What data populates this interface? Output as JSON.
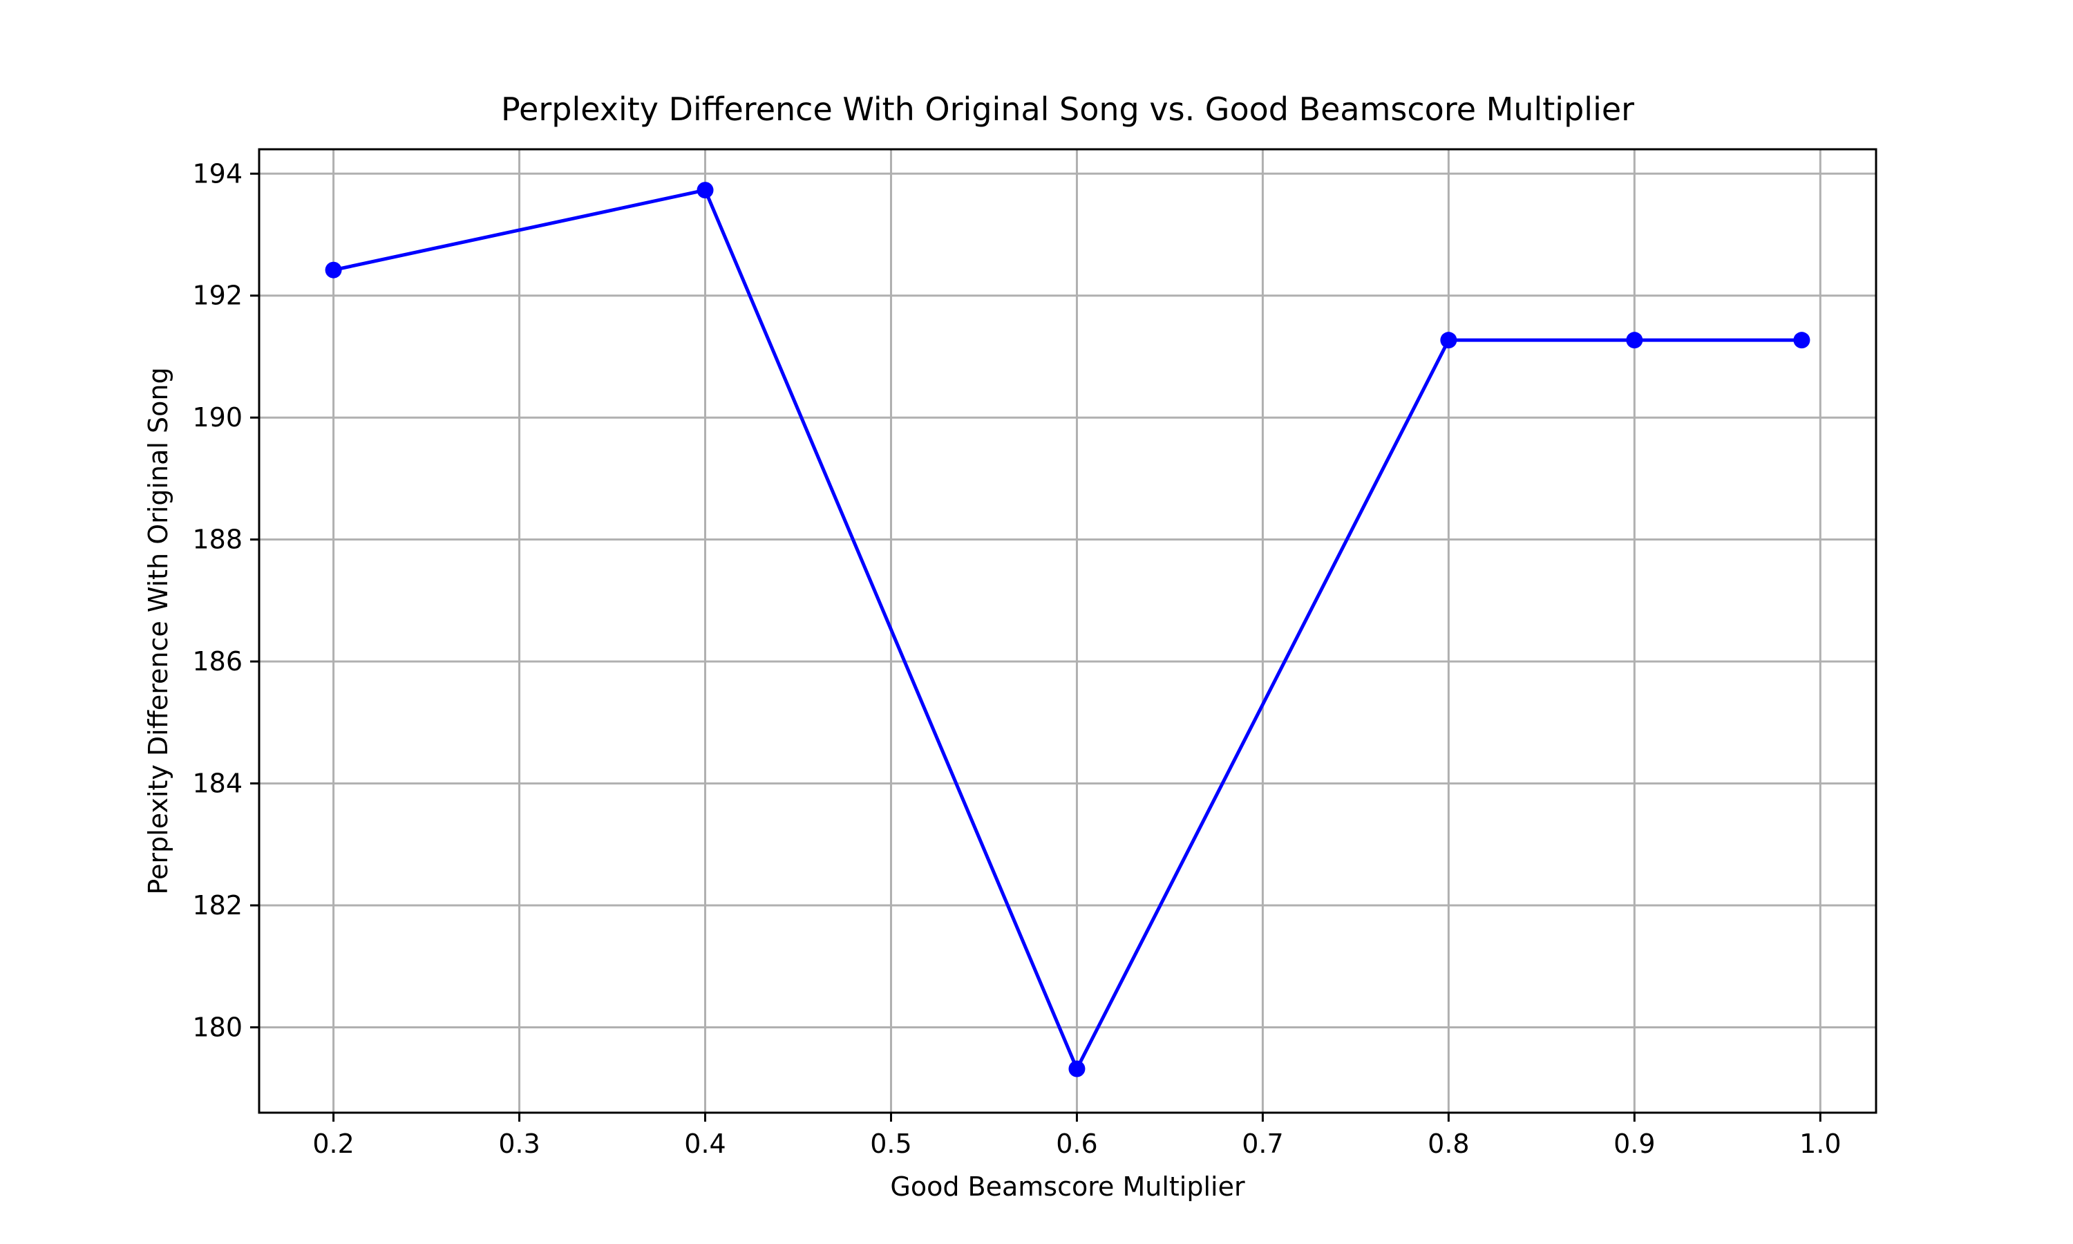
{
  "chart_data": {
    "type": "line",
    "title": "Perplexity Difference With Original Song vs. Good Beamscore Multiplier",
    "xlabel": "Good Beamscore Multiplier",
    "ylabel": "Perplexity Difference With Original Song",
    "xlim": [
      0.16,
      1.03
    ],
    "ylim": [
      178.6,
      194.4
    ],
    "x_ticks": [
      0.2,
      0.3,
      0.4,
      0.5,
      0.6,
      0.7,
      0.8,
      0.9,
      1.0
    ],
    "x_tick_labels": [
      "0.2",
      "0.3",
      "0.4",
      "0.5",
      "0.6",
      "0.7",
      "0.8",
      "0.9",
      "1.0"
    ],
    "y_ticks": [
      180,
      182,
      184,
      186,
      188,
      190,
      192,
      194
    ],
    "y_tick_labels": [
      "180",
      "182",
      "184",
      "186",
      "188",
      "190",
      "192",
      "194"
    ],
    "grid": true,
    "series": [
      {
        "color": "#0000ff",
        "marker": "circle",
        "x": [
          0.2,
          0.4,
          0.6,
          0.8,
          0.9,
          0.99
        ],
        "y": [
          192.42,
          193.73,
          179.32,
          191.27,
          191.27,
          191.27
        ]
      }
    ]
  }
}
